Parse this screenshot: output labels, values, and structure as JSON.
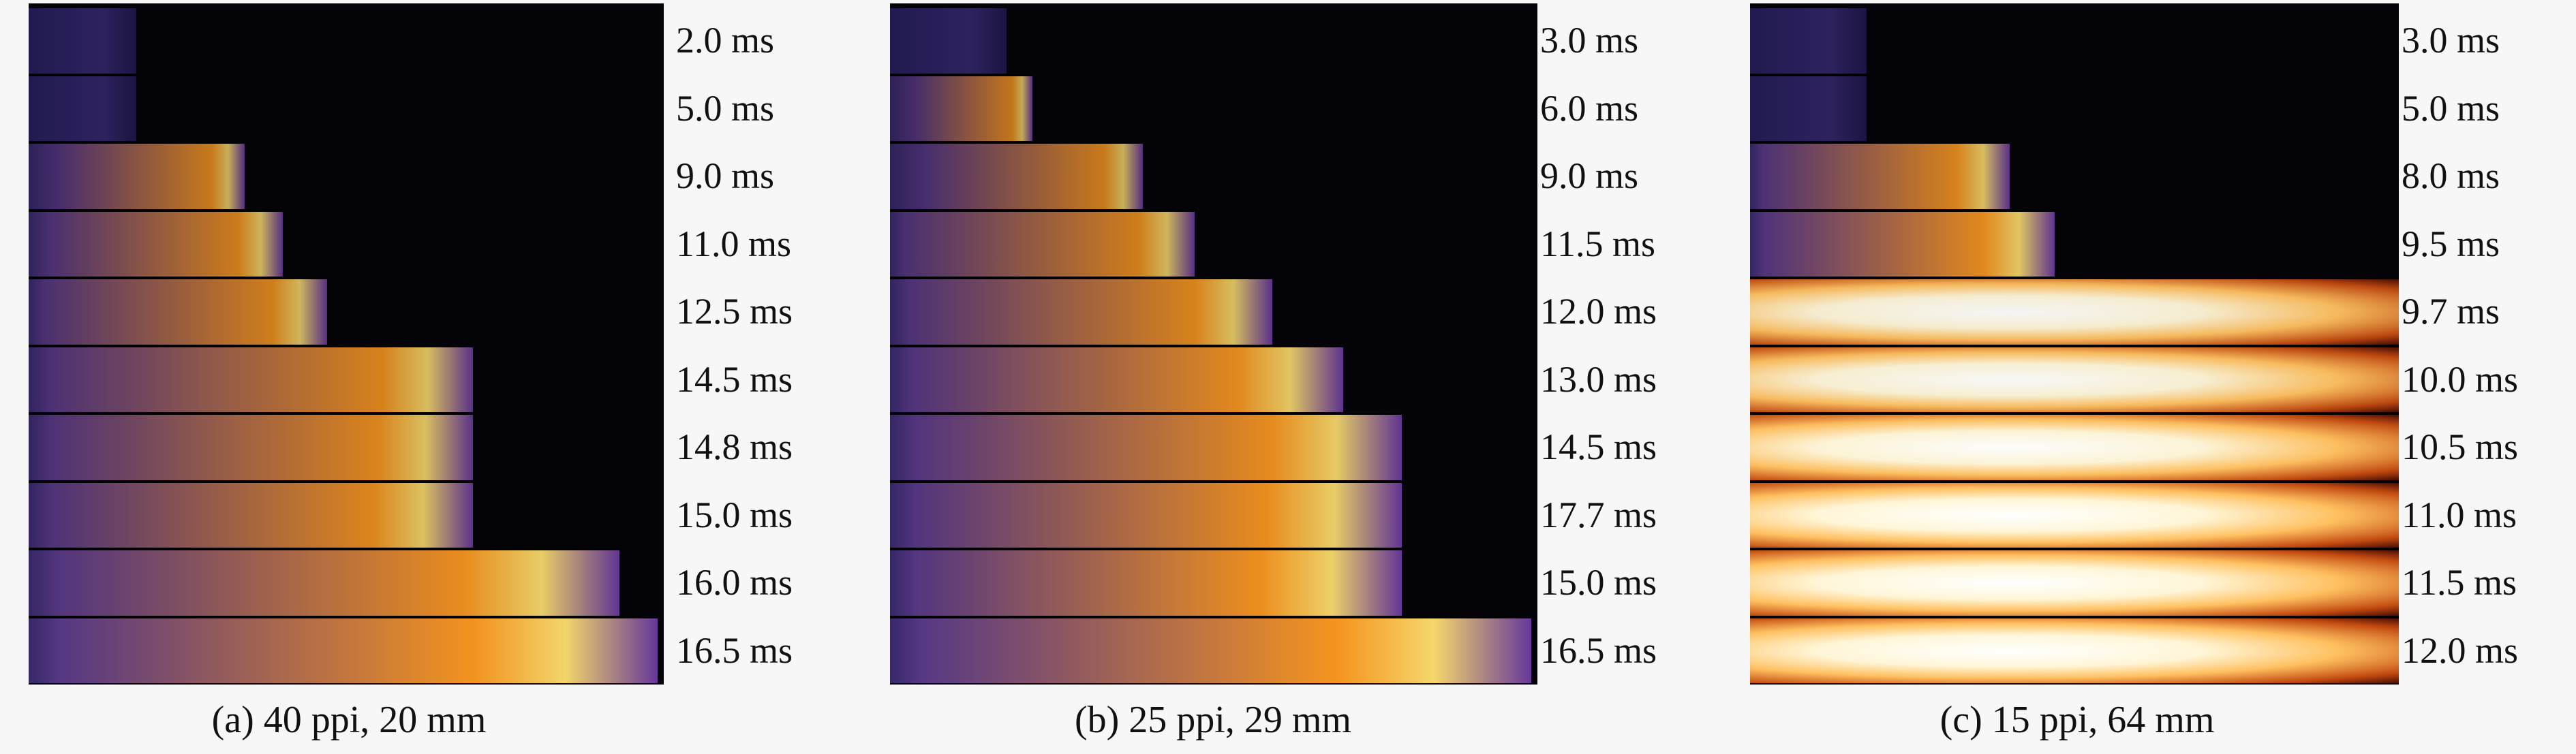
{
  "panels": [
    {
      "caption": "(a) 40 ppi, 20 mm",
      "times": [
        "2.0 ms",
        "5.0 ms",
        "9.0 ms",
        "11.0 ms",
        "12.5 ms",
        "14.5 ms",
        "14.8 ms",
        "15.0 ms",
        "16.0 ms",
        "16.5 ms"
      ],
      "extent": [
        0.17,
        0.17,
        0.34,
        0.4,
        0.47,
        0.7,
        0.7,
        0.7,
        0.93,
        0.99
      ],
      "intensity": [
        0.0,
        0.0,
        0.1,
        0.2,
        0.25,
        0.35,
        0.4,
        0.45,
        0.65,
        0.8
      ],
      "mode": "purple"
    },
    {
      "caption": "(b) 25 ppi, 29 mm",
      "times": [
        "3.0 ms",
        "6.0 ms",
        "9.0 ms",
        "11.5 ms",
        "12.0 ms",
        "13.0 ms",
        "14.5 ms",
        "17.7 ms",
        "15.0 ms",
        "16.5 ms"
      ],
      "extent": [
        0.18,
        0.22,
        0.39,
        0.47,
        0.59,
        0.7,
        0.79,
        0.79,
        0.79,
        0.99
      ],
      "intensity": [
        0.0,
        0.05,
        0.1,
        0.25,
        0.35,
        0.5,
        0.6,
        0.65,
        0.7,
        0.85
      ],
      "mode": "purple"
    },
    {
      "caption": "(c) 15 ppi, 64 mm",
      "times": [
        "3.0 ms",
        "5.0 ms",
        "8.0 ms",
        "9.5 ms",
        "9.7 ms",
        "10.0 ms",
        "10.5 ms",
        "11.0 ms",
        "11.5 ms",
        "12.0 ms"
      ],
      "extent": [
        0.18,
        0.18,
        0.4,
        0.47,
        1.0,
        1.0,
        1.0,
        1.0,
        1.0,
        1.0
      ],
      "intensity": [
        0.0,
        0.0,
        0.35,
        0.5,
        0.85,
        0.9,
        0.95,
        1.0,
        1.0,
        1.0
      ],
      "mode": "white"
    }
  ]
}
